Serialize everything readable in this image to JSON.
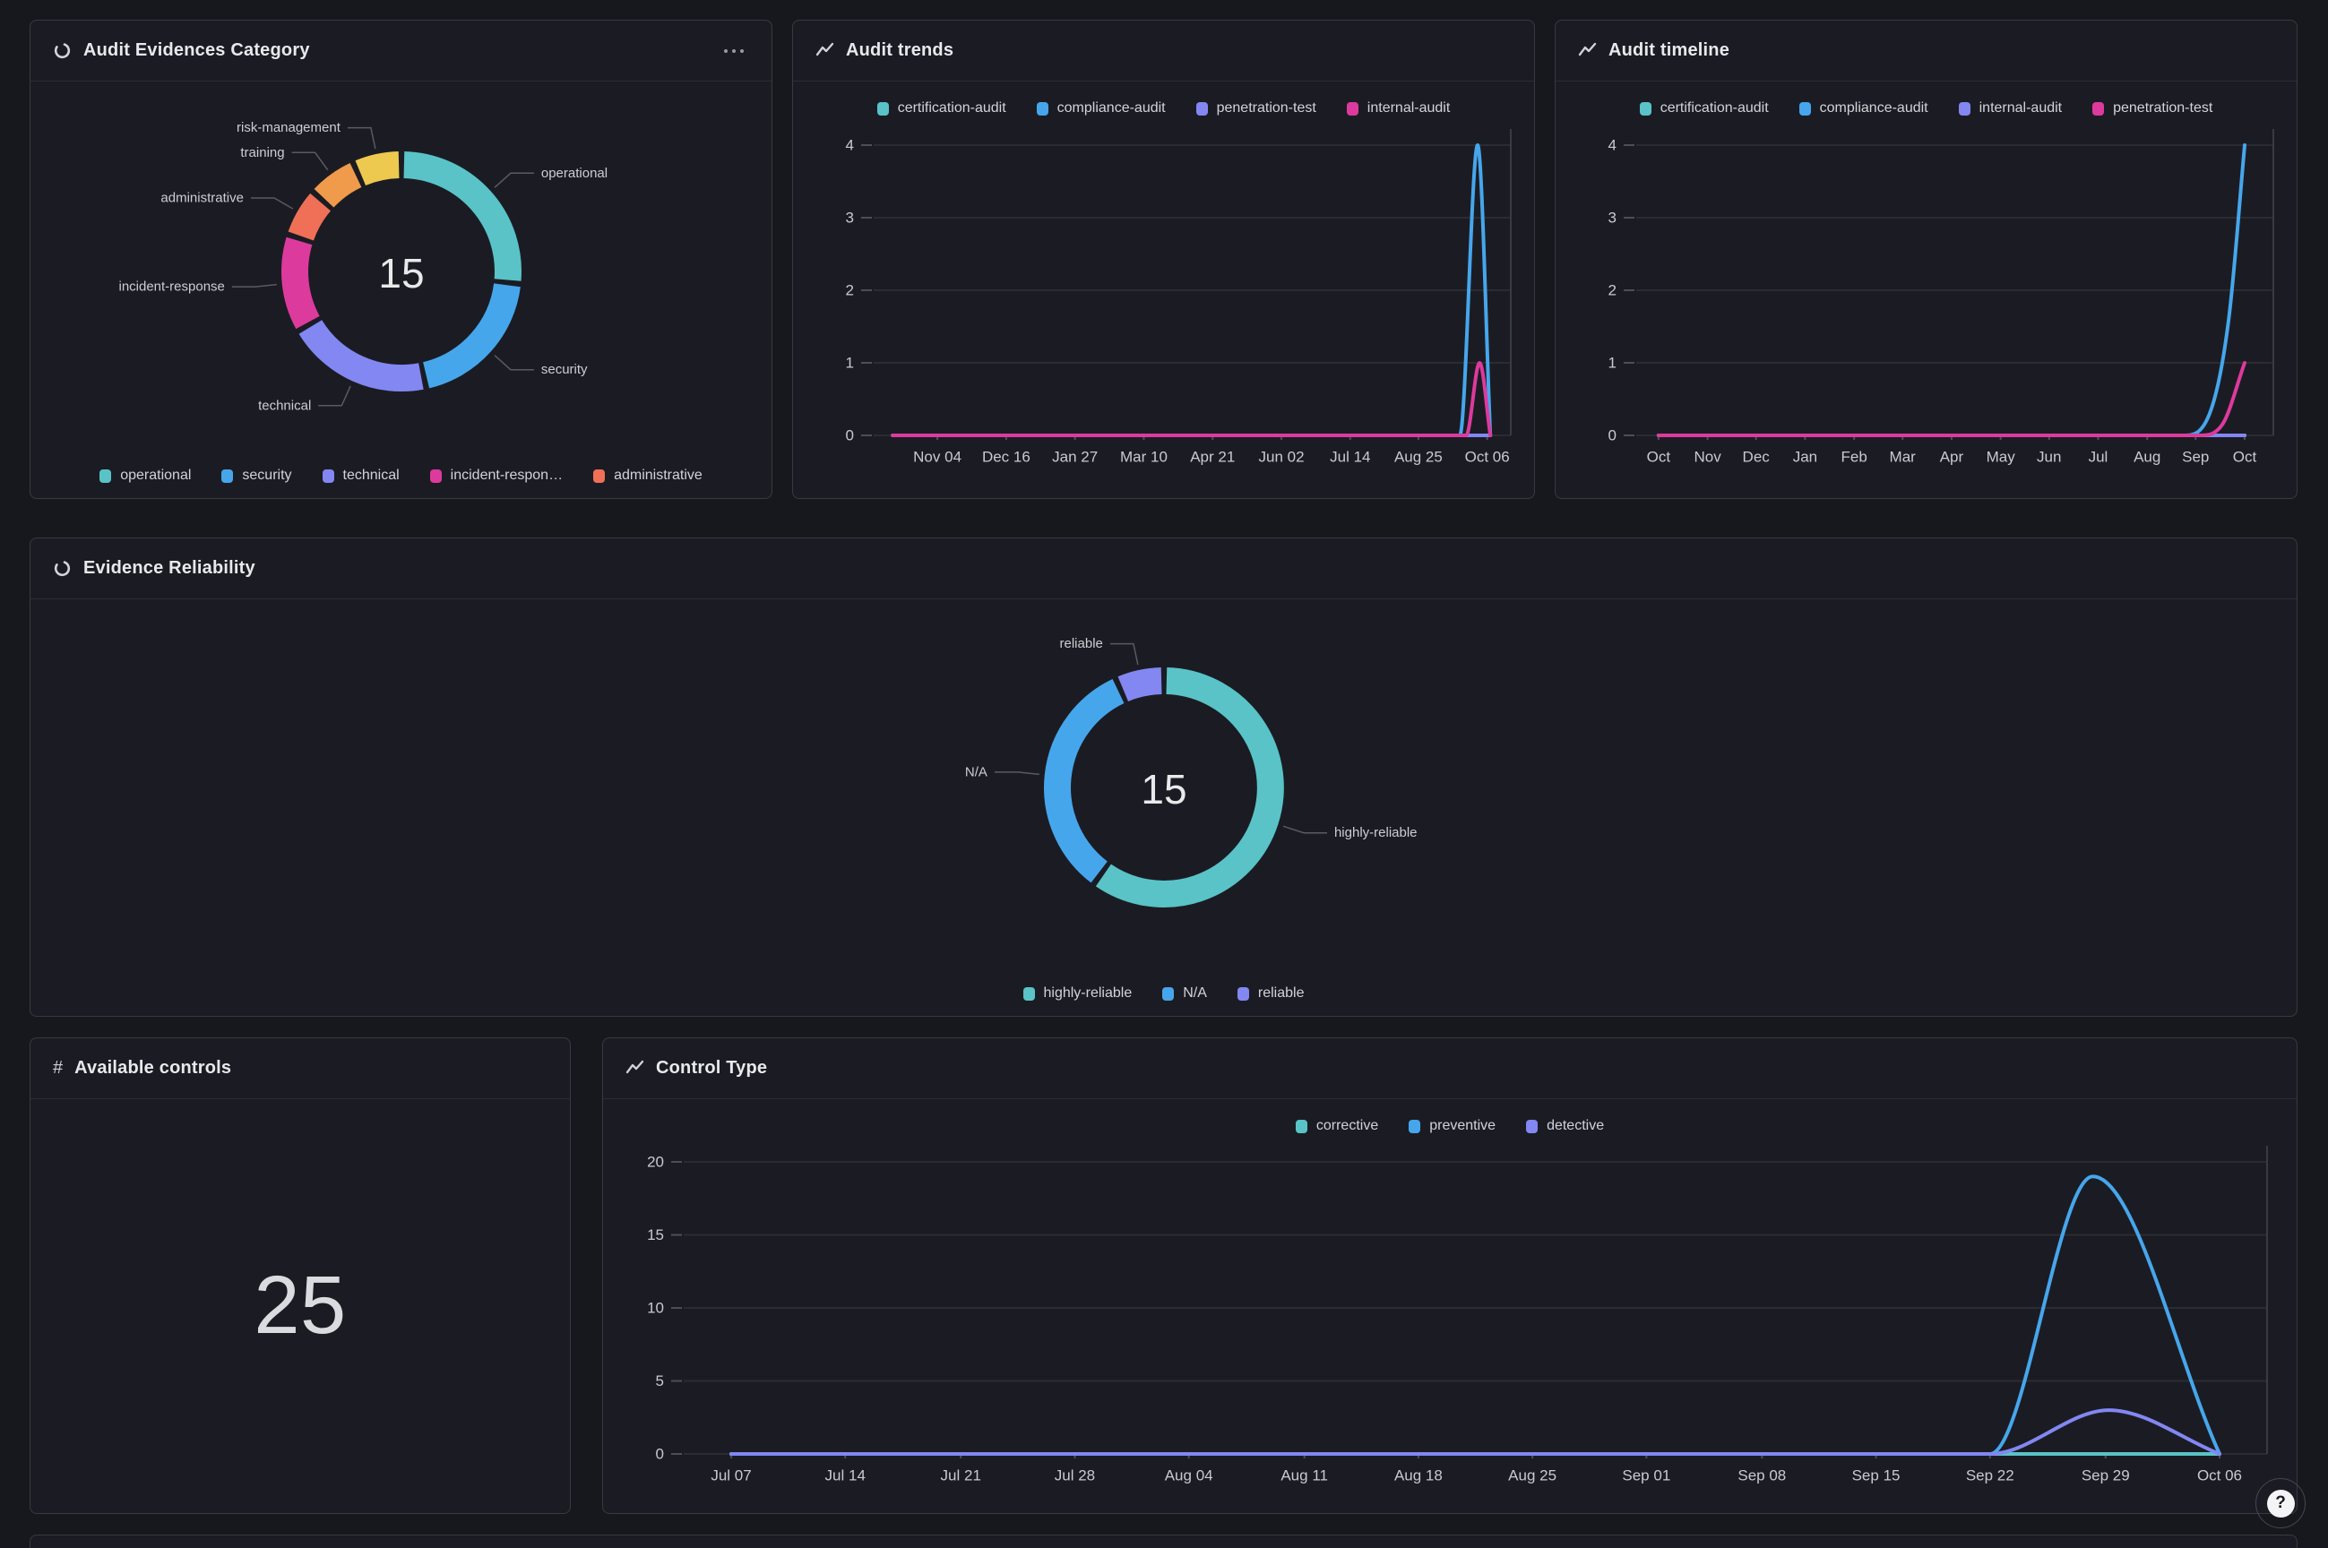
{
  "page": {
    "help_label": "?"
  },
  "panels": {
    "audit_category": {
      "title": "Audit Evidences Category",
      "icon": "donut-chart-icon",
      "menu_icon": "kebab-menu-icon"
    },
    "audit_trends": {
      "title": "Audit trends",
      "icon": "line-chart-icon"
    },
    "audit_timeline": {
      "title": "Audit timeline",
      "icon": "line-chart-icon"
    },
    "evidence_reliability": {
      "title": "Evidence Reliability",
      "icon": "donut-chart-icon"
    },
    "available_controls": {
      "title": "Available controls",
      "icon": "hash-icon"
    },
    "control_type": {
      "title": "Control Type",
      "icon": "line-chart-icon"
    }
  },
  "chart_data": [
    {
      "panel": "audit_category",
      "type": "pie",
      "title": "Audit Evidences Category",
      "center_label": "15",
      "total": 15,
      "slices": [
        {
          "label": "operational",
          "value": 4,
          "color": "#59c3c7"
        },
        {
          "label": "security",
          "value": 3,
          "color": "#46a6ec"
        },
        {
          "label": "technical",
          "value": 3,
          "color": "#8287f2"
        },
        {
          "label": "incident-response",
          "value": 2,
          "color": "#dd3a9e"
        },
        {
          "label": "administrative",
          "value": 1,
          "color": "#ef7057"
        },
        {
          "label": "training",
          "value": 1,
          "color": "#f09a4b"
        },
        {
          "label": "risk-management",
          "value": 1,
          "color": "#eec94f"
        }
      ],
      "legend": [
        {
          "label": "operational",
          "color": "#59c3c7"
        },
        {
          "label": "security",
          "color": "#46a6ec"
        },
        {
          "label": "technical",
          "color": "#8287f2"
        },
        {
          "label": "incident-respon…",
          "color": "#dd3a9e"
        },
        {
          "label": "administrative",
          "color": "#ef7057"
        }
      ]
    },
    {
      "panel": "audit_trends",
      "type": "line",
      "title": "Audit trends",
      "ylim": [
        0,
        4
      ],
      "yticks": [
        0,
        1,
        2,
        3,
        4
      ],
      "xticks": [
        "Nov 04",
        "Dec 16",
        "Jan 27",
        "Mar 10",
        "Apr 21",
        "Jun 02",
        "Jul 14",
        "Aug 25",
        "Oct 06"
      ],
      "xtick_fr": [
        0.1,
        0.208,
        0.316,
        0.424,
        0.532,
        0.64,
        0.748,
        0.855,
        0.963
      ],
      "grid": true,
      "legend_position": "top-center",
      "series": [
        {
          "name": "certification-audit",
          "color": "#59c3c7",
          "points": [
            [
              0.03,
              0
            ],
            [
              0.968,
              0
            ]
          ]
        },
        {
          "name": "compliance-audit",
          "color": "#46a6ec",
          "points": [
            [
              0.03,
              0
            ],
            [
              0.92,
              0
            ],
            [
              0.948,
              4
            ],
            [
              0.968,
              0
            ]
          ]
        },
        {
          "name": "penetration-test",
          "color": "#8287f2",
          "points": [
            [
              0.03,
              0
            ],
            [
              0.968,
              0
            ]
          ]
        },
        {
          "name": "internal-audit",
          "color": "#dd3a9e",
          "points": [
            [
              0.03,
              0
            ],
            [
              0.93,
              0
            ],
            [
              0.951,
              1
            ],
            [
              0.968,
              0
            ]
          ]
        }
      ]
    },
    {
      "panel": "audit_timeline",
      "type": "line",
      "title": "Audit timeline",
      "ylim": [
        0,
        4
      ],
      "yticks": [
        0,
        1,
        2,
        3,
        4
      ],
      "xticks": [
        "Oct",
        "Nov",
        "Dec",
        "Jan",
        "Feb",
        "Mar",
        "Apr",
        "May",
        "Jun",
        "Jul",
        "Aug",
        "Sep",
        "Oct"
      ],
      "xtick_fr": [
        0.035,
        0.112,
        0.188,
        0.265,
        0.342,
        0.418,
        0.495,
        0.572,
        0.648,
        0.725,
        0.802,
        0.878,
        0.955
      ],
      "grid": true,
      "legend_position": "top-center",
      "series": [
        {
          "name": "certification-audit",
          "color": "#59c3c7",
          "points": [
            [
              0.035,
              0
            ],
            [
              0.955,
              0
            ]
          ]
        },
        {
          "name": "compliance-audit",
          "color": "#46a6ec",
          "points": [
            [
              0.035,
              0
            ],
            [
              0.86,
              0
            ],
            [
              0.9,
              0.3
            ],
            [
              0.93,
              1.6
            ],
            [
              0.955,
              4
            ]
          ]
        },
        {
          "name": "internal-audit",
          "color": "#8287f2",
          "points": [
            [
              0.035,
              0
            ],
            [
              0.955,
              0
            ]
          ]
        },
        {
          "name": "penetration-test",
          "color": "#dd3a9e",
          "points": [
            [
              0.035,
              0
            ],
            [
              0.885,
              0
            ],
            [
              0.92,
              0.15
            ],
            [
              0.955,
              1
            ]
          ]
        }
      ]
    },
    {
      "panel": "evidence_reliability",
      "type": "pie",
      "title": "Evidence Reliability",
      "center_label": "15",
      "total": 15,
      "slices": [
        {
          "label": "highly-reliable",
          "value": 9,
          "color": "#59c3c7"
        },
        {
          "label": "N/A",
          "value": 5,
          "color": "#46a6ec"
        },
        {
          "label": "reliable",
          "value": 1,
          "color": "#8287f2"
        }
      ],
      "legend": [
        {
          "label": "highly-reliable",
          "color": "#59c3c7"
        },
        {
          "label": "N/A",
          "color": "#46a6ec"
        },
        {
          "label": "reliable",
          "color": "#8287f2"
        }
      ]
    },
    {
      "panel": "available_controls",
      "type": "stat",
      "title": "Available controls",
      "value": "25"
    },
    {
      "panel": "control_type",
      "type": "line",
      "title": "Control Type",
      "ylim": [
        0,
        20
      ],
      "yticks": [
        0,
        5,
        10,
        15,
        20
      ],
      "xticks": [
        "Jul 07",
        "Jul 14",
        "Jul 21",
        "Jul 28",
        "Aug 04",
        "Aug 11",
        "Aug 18",
        "Aug 25",
        "Sep 01",
        "Sep 08",
        "Sep 15",
        "Sep 22",
        "Sep 29",
        "Oct 06"
      ],
      "xtick_fr": [
        0.03,
        0.102,
        0.175,
        0.247,
        0.319,
        0.392,
        0.464,
        0.536,
        0.608,
        0.681,
        0.753,
        0.825,
        0.898,
        0.97
      ],
      "grid": true,
      "legend_position": "top-center",
      "series": [
        {
          "name": "corrective",
          "color": "#59c3c7",
          "points": [
            [
              0.03,
              0
            ],
            [
              0.97,
              0
            ]
          ]
        },
        {
          "name": "preventive",
          "color": "#46a6ec",
          "points": [
            [
              0.03,
              0
            ],
            [
              0.825,
              0
            ],
            [
              0.89,
              19
            ],
            [
              0.97,
              0
            ]
          ]
        },
        {
          "name": "detective",
          "color": "#8287f2",
          "points": [
            [
              0.03,
              0
            ],
            [
              0.825,
              0
            ],
            [
              0.9,
              3
            ],
            [
              0.97,
              0
            ]
          ]
        }
      ]
    }
  ]
}
